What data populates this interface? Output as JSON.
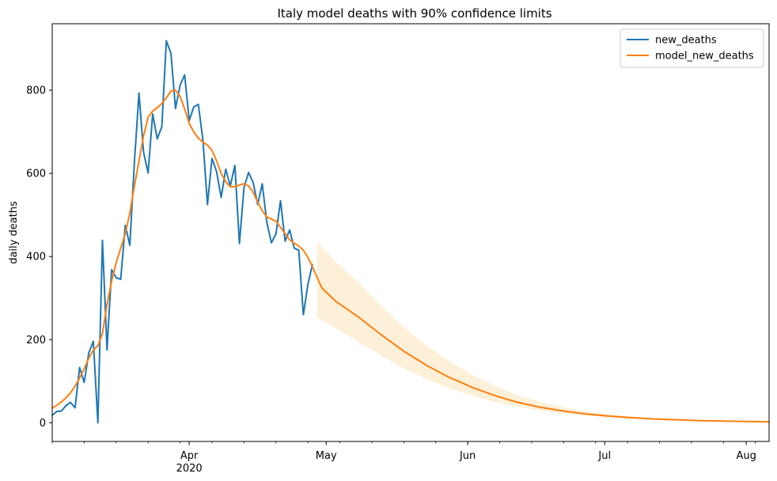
{
  "chart_data": {
    "type": "line",
    "title": "Italy model deaths with 90% confidence limits",
    "xlabel": "",
    "ylabel": "daily deaths",
    "xlim": [
      "2020-03-02",
      "2020-08-06"
    ],
    "ylim": [
      -45,
      960
    ],
    "grid": false,
    "legend_position": "top-right",
    "x_ticks": [
      {
        "date": "2020-04-01",
        "label": "Apr",
        "sublabel": "2020"
      },
      {
        "date": "2020-05-01",
        "label": "May",
        "sublabel": ""
      },
      {
        "date": "2020-06-01",
        "label": "Jun",
        "sublabel": ""
      },
      {
        "date": "2020-07-01",
        "label": "Jul",
        "sublabel": ""
      },
      {
        "date": "2020-08-01",
        "label": "Aug",
        "sublabel": ""
      }
    ],
    "y_ticks": [
      0,
      200,
      400,
      600,
      800
    ],
    "colors": {
      "new_deaths": "#1f77b4",
      "model_new_deaths": "#ff7f0e",
      "band": "#fdf0d9"
    },
    "series": [
      {
        "name": "new_deaths",
        "color": "#1f77b4",
        "points": [
          [
            "2020-03-02",
            18
          ],
          [
            "2020-03-03",
            27
          ],
          [
            "2020-03-04",
            28
          ],
          [
            "2020-03-05",
            41
          ],
          [
            "2020-03-06",
            49
          ],
          [
            "2020-03-07",
            36
          ],
          [
            "2020-03-08",
            133
          ],
          [
            "2020-03-09",
            97
          ],
          [
            "2020-03-10",
            168
          ],
          [
            "2020-03-11",
            196
          ],
          [
            "2020-03-12",
            0
          ],
          [
            "2020-03-13",
            439
          ],
          [
            "2020-03-14",
            175
          ],
          [
            "2020-03-15",
            368
          ],
          [
            "2020-03-16",
            349
          ],
          [
            "2020-03-17",
            345
          ],
          [
            "2020-03-18",
            475
          ],
          [
            "2020-03-19",
            427
          ],
          [
            "2020-03-20",
            627
          ],
          [
            "2020-03-21",
            793
          ],
          [
            "2020-03-22",
            651
          ],
          [
            "2020-03-23",
            601
          ],
          [
            "2020-03-24",
            743
          ],
          [
            "2020-03-25",
            683
          ],
          [
            "2020-03-26",
            712
          ],
          [
            "2020-03-27",
            919
          ],
          [
            "2020-03-28",
            889
          ],
          [
            "2020-03-29",
            756
          ],
          [
            "2020-03-30",
            812
          ],
          [
            "2020-03-31",
            837
          ],
          [
            "2020-04-01",
            727
          ],
          [
            "2020-04-02",
            760
          ],
          [
            "2020-04-03",
            766
          ],
          [
            "2020-04-04",
            681
          ],
          [
            "2020-04-05",
            525
          ],
          [
            "2020-04-06",
            636
          ],
          [
            "2020-04-07",
            604
          ],
          [
            "2020-04-08",
            542
          ],
          [
            "2020-04-09",
            610
          ],
          [
            "2020-04-10",
            570
          ],
          [
            "2020-04-11",
            619
          ],
          [
            "2020-04-12",
            431
          ],
          [
            "2020-04-13",
            566
          ],
          [
            "2020-04-14",
            602
          ],
          [
            "2020-04-15",
            578
          ],
          [
            "2020-04-16",
            525
          ],
          [
            "2020-04-17",
            575
          ],
          [
            "2020-04-18",
            482
          ],
          [
            "2020-04-19",
            433
          ],
          [
            "2020-04-20",
            454
          ],
          [
            "2020-04-21",
            534
          ],
          [
            "2020-04-22",
            437
          ],
          [
            "2020-04-23",
            464
          ],
          [
            "2020-04-24",
            420
          ],
          [
            "2020-04-25",
            415
          ],
          [
            "2020-04-26",
            260
          ],
          [
            "2020-04-27",
            333
          ],
          [
            "2020-04-28",
            382
          ]
        ]
      },
      {
        "name": "model_new_deaths",
        "color": "#ff7f0e",
        "points": [
          [
            "2020-03-02",
            35
          ],
          [
            "2020-03-03",
            42
          ],
          [
            "2020-03-04",
            50
          ],
          [
            "2020-03-05",
            60
          ],
          [
            "2020-03-06",
            72
          ],
          [
            "2020-03-07",
            88
          ],
          [
            "2020-03-08",
            108
          ],
          [
            "2020-03-09",
            130
          ],
          [
            "2020-03-10",
            155
          ],
          [
            "2020-03-11",
            175
          ],
          [
            "2020-03-12",
            185
          ],
          [
            "2020-03-13",
            215
          ],
          [
            "2020-03-14",
            285
          ],
          [
            "2020-03-15",
            340
          ],
          [
            "2020-03-16",
            385
          ],
          [
            "2020-03-17",
            420
          ],
          [
            "2020-03-18",
            455
          ],
          [
            "2020-03-19",
            505
          ],
          [
            "2020-03-20",
            570
          ],
          [
            "2020-03-21",
            630
          ],
          [
            "2020-03-22",
            690
          ],
          [
            "2020-03-23",
            735
          ],
          [
            "2020-03-24",
            750
          ],
          [
            "2020-03-25",
            758
          ],
          [
            "2020-03-26",
            768
          ],
          [
            "2020-03-27",
            782
          ],
          [
            "2020-03-28",
            798
          ],
          [
            "2020-03-29",
            800
          ],
          [
            "2020-03-30",
            785
          ],
          [
            "2020-03-31",
            755
          ],
          [
            "2020-04-01",
            720
          ],
          [
            "2020-04-02",
            700
          ],
          [
            "2020-04-03",
            685
          ],
          [
            "2020-04-04",
            675
          ],
          [
            "2020-04-05",
            668
          ],
          [
            "2020-04-06",
            655
          ],
          [
            "2020-04-07",
            630
          ],
          [
            "2020-04-08",
            600
          ],
          [
            "2020-04-09",
            580
          ],
          [
            "2020-04-10",
            568
          ],
          [
            "2020-04-11",
            568
          ],
          [
            "2020-04-12",
            572
          ],
          [
            "2020-04-13",
            575
          ],
          [
            "2020-04-14",
            570
          ],
          [
            "2020-04-15",
            555
          ],
          [
            "2020-04-16",
            530
          ],
          [
            "2020-04-17",
            510
          ],
          [
            "2020-04-18",
            495
          ],
          [
            "2020-04-19",
            490
          ],
          [
            "2020-04-20",
            485
          ],
          [
            "2020-04-21",
            470
          ],
          [
            "2020-04-22",
            455
          ],
          [
            "2020-04-23",
            440
          ],
          [
            "2020-04-24",
            432
          ],
          [
            "2020-04-25",
            425
          ],
          [
            "2020-04-26",
            415
          ],
          [
            "2020-04-27",
            398
          ],
          [
            "2020-04-28",
            375
          ],
          [
            "2020-04-29",
            350
          ],
          [
            "2020-04-30",
            325
          ],
          [
            "2020-05-03",
            293
          ],
          [
            "2020-05-08",
            255
          ],
          [
            "2020-05-13",
            212
          ],
          [
            "2020-05-18",
            172
          ],
          [
            "2020-05-23",
            138
          ],
          [
            "2020-05-28",
            109
          ],
          [
            "2020-06-02",
            85
          ],
          [
            "2020-06-07",
            65
          ],
          [
            "2020-06-12",
            49
          ],
          [
            "2020-06-17",
            37
          ],
          [
            "2020-06-22",
            28
          ],
          [
            "2020-06-27",
            21
          ],
          [
            "2020-07-02",
            16
          ],
          [
            "2020-07-07",
            12
          ],
          [
            "2020-07-12",
            9
          ],
          [
            "2020-07-17",
            7
          ],
          [
            "2020-07-22",
            5
          ],
          [
            "2020-07-27",
            4
          ],
          [
            "2020-08-01",
            3
          ],
          [
            "2020-08-06",
            2
          ]
        ]
      }
    ],
    "confidence_band": {
      "upper": [
        [
          "2020-04-29",
          435
        ],
        [
          "2020-05-03",
          388
        ],
        [
          "2020-05-08",
          338
        ],
        [
          "2020-05-13",
          282
        ],
        [
          "2020-05-18",
          230
        ],
        [
          "2020-05-23",
          185
        ],
        [
          "2020-05-28",
          148
        ],
        [
          "2020-06-02",
          115
        ],
        [
          "2020-06-07",
          88
        ],
        [
          "2020-06-12",
          66
        ],
        [
          "2020-06-17",
          50
        ],
        [
          "2020-06-22",
          37
        ],
        [
          "2020-06-27",
          27
        ],
        [
          "2020-07-02",
          20
        ],
        [
          "2020-07-07",
          15
        ],
        [
          "2020-07-12",
          11
        ],
        [
          "2020-07-17",
          8
        ],
        [
          "2020-07-22",
          6
        ],
        [
          "2020-07-27",
          5
        ],
        [
          "2020-08-01",
          4
        ],
        [
          "2020-08-06",
          3
        ]
      ],
      "lower": [
        [
          "2020-04-29",
          255
        ],
        [
          "2020-05-03",
          228
        ],
        [
          "2020-05-08",
          196
        ],
        [
          "2020-05-13",
          162
        ],
        [
          "2020-05-18",
          131
        ],
        [
          "2020-05-23",
          105
        ],
        [
          "2020-05-28",
          83
        ],
        [
          "2020-06-02",
          65
        ],
        [
          "2020-06-07",
          50
        ],
        [
          "2020-06-12",
          38
        ],
        [
          "2020-06-17",
          29
        ],
        [
          "2020-06-22",
          22
        ],
        [
          "2020-06-27",
          17
        ],
        [
          "2020-07-02",
          13
        ],
        [
          "2020-07-07",
          10
        ],
        [
          "2020-07-12",
          7
        ],
        [
          "2020-07-17",
          5
        ],
        [
          "2020-07-22",
          4
        ],
        [
          "2020-07-27",
          3
        ],
        [
          "2020-08-01",
          2
        ],
        [
          "2020-08-06",
          2
        ]
      ]
    }
  }
}
